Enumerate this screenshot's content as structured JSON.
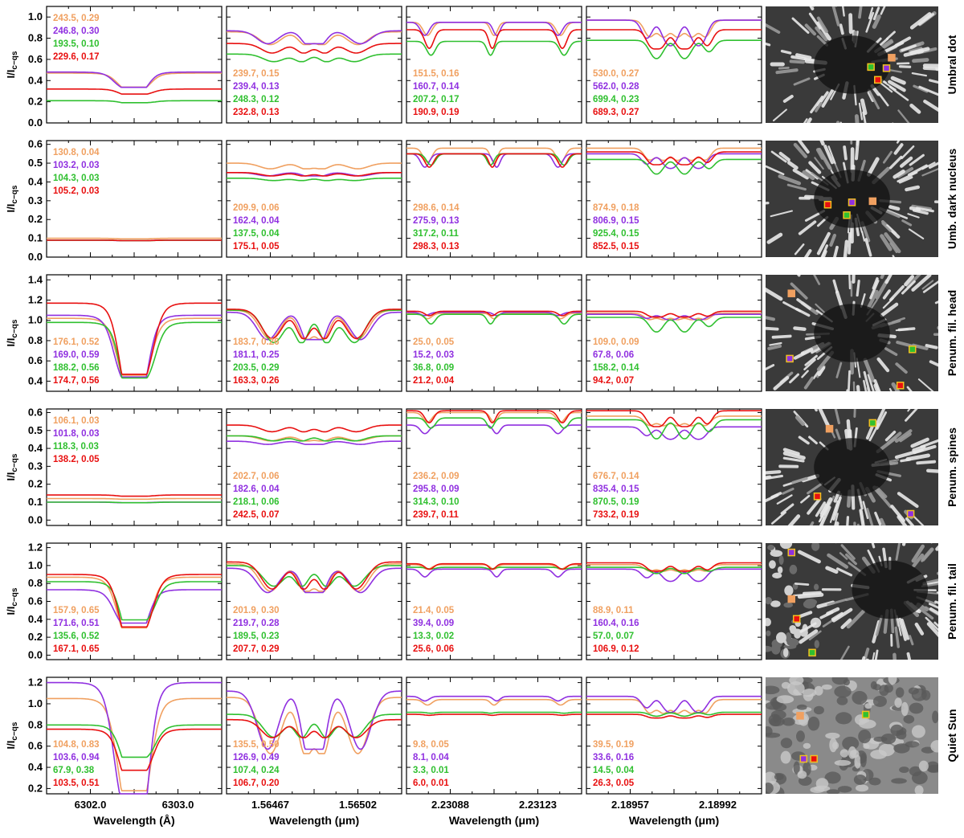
{
  "figure": {
    "y_axis_label": "I/I",
    "y_axis_label_sub": "c−qs",
    "x_axis_labels": [
      "Wavelength (Å)",
      "Wavelength (μm)",
      "Wavelength (μm)",
      "Wavelength (μm)"
    ],
    "x_ticks": [
      [
        "6302.0",
        "6303.0"
      ],
      [
        "1.56467",
        "1.56502"
      ],
      [
        "2.23088",
        "2.23123"
      ],
      [
        "2.18957",
        "2.18992"
      ]
    ],
    "rows": [
      "Umbral dot",
      "Umb. dark nucleus",
      "Penum. fil. head",
      "Penum. spines",
      "Penum. fil. tail",
      "Quiet Sun"
    ],
    "series_colors": [
      "#f0a060",
      "#9030e0",
      "#30c030",
      "#e81010"
    ]
  },
  "chart_data": [
    {
      "type": "line",
      "row": "Umbral dot",
      "line": "6302",
      "ylim": [
        0,
        1.1
      ],
      "yticks": [
        "0.0",
        "0.2",
        "0.4",
        "0.6",
        "0.8",
        "1.0"
      ],
      "continuum": [
        0.47,
        0.48,
        0.21,
        0.32
      ],
      "depth": [
        0.28,
        0.3,
        0.09,
        0.15
      ],
      "labels": [
        "243.5, 0.29",
        "246.8, 0.30",
        "193.5, 0.10",
        "229.6, 0.17"
      ],
      "label_pos": "top"
    },
    {
      "type": "line",
      "row": "Umbral dot",
      "line": "1.565",
      "ylim": [
        0,
        1.1
      ],
      "yticks": [],
      "continuum": [
        0.86,
        0.87,
        0.65,
        0.75
      ],
      "depth": [
        0.14,
        0.14,
        0.11,
        0.12
      ],
      "labels": [
        "239.7, 0.15",
        "239.4, 0.13",
        "248.3, 0.12",
        "232.8, 0.13"
      ],
      "label_pos": "bottom"
    },
    {
      "type": "line",
      "row": "Umbral dot",
      "line": "2.231",
      "ylim": [
        0,
        1.1
      ],
      "yticks": [],
      "continuum": [
        0.95,
        0.95,
        0.77,
        0.88
      ],
      "depth": [
        0.13,
        0.13,
        0.17,
        0.2
      ],
      "labels": [
        "151.5, 0.16",
        "160.7, 0.14",
        "207.2, 0.17",
        "190.9, 0.19"
      ],
      "label_pos": "bottom"
    },
    {
      "type": "line",
      "row": "Umbral dot",
      "line": "2.190",
      "ylim": [
        0,
        1.1
      ],
      "yticks": [],
      "continuum": [
        0.97,
        0.97,
        0.78,
        0.88
      ],
      "depth": [
        0.25,
        0.28,
        0.22,
        0.27
      ],
      "labels": [
        "530.0, 0.27",
        "562.0, 0.28",
        "699.4, 0.23",
        "689.3, 0.27"
      ],
      "label_pos": "bottom"
    },
    {
      "type": "line",
      "row": "Umb. dark nucleus",
      "line": "6302",
      "ylim": [
        0,
        0.62
      ],
      "yticks": [
        "0.0",
        "0.1",
        "0.2",
        "0.3",
        "0.4",
        "0.5",
        "0.6"
      ],
      "continuum": [
        0.1,
        0.09,
        0.09,
        0.09
      ],
      "depth": [
        0.03,
        0.025,
        0.025,
        0.025
      ],
      "labels": [
        "130.8, 0.04",
        "103.2, 0.03",
        "104.3, 0.03",
        "105.2, 0.03"
      ],
      "label_pos": "top"
    },
    {
      "type": "line",
      "row": "Umb. dark nucleus",
      "line": "1.565",
      "ylim": [
        0,
        0.62
      ],
      "yticks": [],
      "continuum": [
        0.5,
        0.45,
        0.42,
        0.45
      ],
      "depth": [
        0.06,
        0.04,
        0.03,
        0.04
      ],
      "labels": [
        "209.9, 0.06",
        "162.4, 0.04",
        "137.5, 0.04",
        "175.1, 0.05"
      ],
      "label_pos": "bottom"
    },
    {
      "type": "line",
      "row": "Umb. dark nucleus",
      "line": "2.231",
      "ylim": [
        0,
        0.62
      ],
      "yticks": [],
      "continuum": [
        0.58,
        0.55,
        0.55,
        0.55
      ],
      "depth": [
        0.13,
        0.13,
        0.11,
        0.13
      ],
      "labels": [
        "298.6, 0.14",
        "275.9, 0.13",
        "317.2, 0.11",
        "298.3, 0.13"
      ],
      "label_pos": "bottom"
    },
    {
      "type": "line",
      "row": "Umb. dark nucleus",
      "line": "2.190",
      "ylim": [
        0,
        0.62
      ],
      "yticks": [],
      "continuum": [
        0.58,
        0.55,
        0.52,
        0.56
      ],
      "depth": [
        0.17,
        0.16,
        0.15,
        0.16
      ],
      "labels": [
        "874.9, 0.18",
        "806.9, 0.15",
        "925.4, 0.15",
        "852.5, 0.15"
      ],
      "label_pos": "bottom"
    },
    {
      "type": "line",
      "row": "Penum. fil. head",
      "line": "6302",
      "ylim": [
        0.3,
        1.45
      ],
      "yticks": [
        "0.4",
        "0.6",
        "0.8",
        "1.0",
        "1.2",
        "1.4"
      ],
      "continuum": [
        1.02,
        1.05,
        0.98,
        1.17
      ],
      "depth": [
        0.55,
        0.58,
        0.56,
        0.6
      ],
      "labels": [
        "176.1, 0.52",
        "169.0, 0.59",
        "188.2, 0.56",
        "174.7, 0.56"
      ],
      "label_pos": "bottom"
    },
    {
      "type": "line",
      "row": "Penum. fil. head",
      "line": "1.565",
      "ylim": [
        0.3,
        1.45
      ],
      "yticks": [],
      "continuum": [
        1.1,
        1.08,
        1.1,
        1.11
      ],
      "depth": [
        0.26,
        0.25,
        0.29,
        0.26
      ],
      "labels": [
        "183.7, 0.26",
        "181.1, 0.25",
        "203.5, 0.29",
        "163.3, 0.26"
      ],
      "label_pos": "bottom"
    },
    {
      "type": "line",
      "row": "Penum. fil. head",
      "line": "2.231",
      "ylim": [
        0.3,
        1.45
      ],
      "yticks": [],
      "continuum": [
        1.07,
        1.08,
        1.06,
        1.09
      ],
      "depth": [
        0.05,
        0.03,
        0.09,
        0.04
      ],
      "labels": [
        "25.0, 0.05",
        "15.2, 0.03",
        "36.8, 0.09",
        "21.2, 0.04"
      ],
      "label_pos": "bottom"
    },
    {
      "type": "line",
      "row": "Penum. fil. head",
      "line": "2.190",
      "ylim": [
        0.3,
        1.45
      ],
      "yticks": [],
      "continuum": [
        1.07,
        1.06,
        1.03,
        1.09
      ],
      "depth": [
        0.09,
        0.06,
        0.14,
        0.07
      ],
      "labels": [
        "109.0, 0.09",
        "67.8, 0.06",
        "158.2, 0.14",
        "94.2, 0.07"
      ],
      "label_pos": "bottom"
    },
    {
      "type": "line",
      "row": "Penum. spines",
      "line": "6302",
      "ylim": [
        -0.03,
        0.62
      ],
      "yticks": [
        "0.0",
        "0.1",
        "0.2",
        "0.3",
        "0.4",
        "0.5",
        "0.6"
      ],
      "continuum": [
        0.12,
        0.1,
        0.1,
        0.14
      ],
      "depth": [
        0.03,
        0.03,
        0.03,
        0.05
      ],
      "labels": [
        "106.1, 0.03",
        "101.8, 0.03",
        "118.3, 0.03",
        "138.2, 0.05"
      ],
      "label_pos": "top"
    },
    {
      "type": "line",
      "row": "Penum. spines",
      "line": "1.565",
      "ylim": [
        -0.03,
        0.62
      ],
      "yticks": [],
      "continuum": [
        0.47,
        0.44,
        0.47,
        0.53
      ],
      "depth": [
        0.06,
        0.04,
        0.06,
        0.07
      ],
      "labels": [
        "202.7, 0.06",
        "182.6, 0.04",
        "218.1, 0.06",
        "242.5, 0.07"
      ],
      "label_pos": "bottom"
    },
    {
      "type": "line",
      "row": "Penum. spines",
      "line": "2.231",
      "ylim": [
        -0.03,
        0.62
      ],
      "yticks": [],
      "continuum": [
        0.6,
        0.53,
        0.57,
        0.61
      ],
      "depth": [
        0.09,
        0.09,
        0.1,
        0.11
      ],
      "labels": [
        "236.2, 0.09",
        "295.8, 0.09",
        "314.3, 0.10",
        "239.7, 0.11"
      ],
      "label_pos": "bottom"
    },
    {
      "type": "line",
      "row": "Penum. spines",
      "line": "2.190",
      "ylim": [
        -0.03,
        0.62
      ],
      "yticks": [],
      "continuum": [
        0.58,
        0.52,
        0.56,
        0.61
      ],
      "depth": [
        0.14,
        0.15,
        0.19,
        0.19
      ],
      "labels": [
        "676.7, 0.14",
        "835.4, 0.15",
        "870.5, 0.19",
        "733.2, 0.19"
      ],
      "label_pos": "bottom"
    },
    {
      "type": "line",
      "row": "Penum. fil. tail",
      "line": "6302",
      "ylim": [
        -0.05,
        1.25
      ],
      "yticks": [
        "0.0",
        "0.2",
        "0.4",
        "0.6",
        "0.8",
        "1.0",
        "1.2"
      ],
      "continuum": [
        0.87,
        0.73,
        0.82,
        0.9
      ],
      "depth": [
        0.65,
        0.51,
        0.52,
        0.65
      ],
      "labels": [
        "157.9, 0.65",
        "171.6, 0.51",
        "135.6, 0.52",
        "167.1, 0.65"
      ],
      "label_pos": "bottom"
    },
    {
      "type": "line",
      "row": "Penum. fil. tail",
      "line": "1.565",
      "ylim": [
        -0.05,
        1.25
      ],
      "yticks": [],
      "continuum": [
        1.02,
        0.97,
        1.0,
        1.04
      ],
      "depth": [
        0.3,
        0.28,
        0.23,
        0.29
      ],
      "labels": [
        "201.9, 0.30",
        "219.7, 0.28",
        "189.5, 0.23",
        "207.7, 0.29"
      ],
      "label_pos": "bottom"
    },
    {
      "type": "line",
      "row": "Penum. fil. tail",
      "line": "2.231",
      "ylim": [
        -0.05,
        1.25
      ],
      "yticks": [],
      "continuum": [
        1.01,
        0.96,
        0.98,
        1.02
      ],
      "depth": [
        0.05,
        0.09,
        0.02,
        0.06
      ],
      "labels": [
        "21.4, 0.05",
        "39.4, 0.09",
        "13.3, 0.02",
        "25.6, 0.06"
      ],
      "label_pos": "bottom"
    },
    {
      "type": "line",
      "row": "Penum. fil. tail",
      "line": "2.190",
      "ylim": [
        -0.05,
        1.25
      ],
      "yticks": [],
      "continuum": [
        1.01,
        0.96,
        0.98,
        1.03
      ],
      "depth": [
        0.11,
        0.16,
        0.07,
        0.12
      ],
      "labels": [
        "88.9, 0.11",
        "160.4, 0.16",
        "57.0, 0.07",
        "106.9, 0.12"
      ],
      "label_pos": "bottom"
    },
    {
      "type": "line",
      "row": "Quiet Sun",
      "line": "6302",
      "ylim": [
        0.15,
        1.25
      ],
      "yticks": [
        "0.2",
        "0.4",
        "0.6",
        "0.8",
        "1.0",
        "1.2"
      ],
      "continuum": [
        1.05,
        1.2,
        0.8,
        0.76
      ],
      "depth": [
        0.83,
        0.94,
        0.38,
        0.51
      ],
      "labels": [
        "104.8, 0.83",
        "103.6, 0.94",
        "67.9, 0.38",
        "103.5, 0.51"
      ],
      "label_pos": "bottom"
    },
    {
      "type": "line",
      "row": "Quiet Sun",
      "line": "1.565",
      "ylim": [
        0.15,
        1.25
      ],
      "yticks": [],
      "continuum": [
        1.06,
        1.12,
        0.9,
        0.85
      ],
      "depth": [
        0.5,
        0.49,
        0.24,
        0.2
      ],
      "labels": [
        "135.5, 0.50",
        "126.9, 0.49",
        "107.4, 0.24",
        "106.7, 0.20"
      ],
      "label_pos": "bottom"
    },
    {
      "type": "line",
      "row": "Quiet Sun",
      "line": "2.231",
      "ylim": [
        0.15,
        1.25
      ],
      "yticks": [],
      "continuum": [
        1.04,
        1.07,
        0.92,
        0.9
      ],
      "depth": [
        0.05,
        0.04,
        0.01,
        0.01
      ],
      "labels": [
        "9.8, 0.05",
        "8.1, 0.04",
        "3.3, 0.01",
        "6.0, 0.01"
      ],
      "label_pos": "bottom"
    },
    {
      "type": "line",
      "row": "Quiet Sun",
      "line": "2.190",
      "ylim": [
        0.15,
        1.25
      ],
      "yticks": [],
      "continuum": [
        1.04,
        1.07,
        0.92,
        0.9
      ],
      "depth": [
        0.19,
        0.16,
        0.04,
        0.05
      ],
      "labels": [
        "39.5, 0.19",
        "33.6, 0.16",
        "14.5, 0.04",
        "26.3, 0.05"
      ],
      "label_pos": "bottom"
    }
  ]
}
